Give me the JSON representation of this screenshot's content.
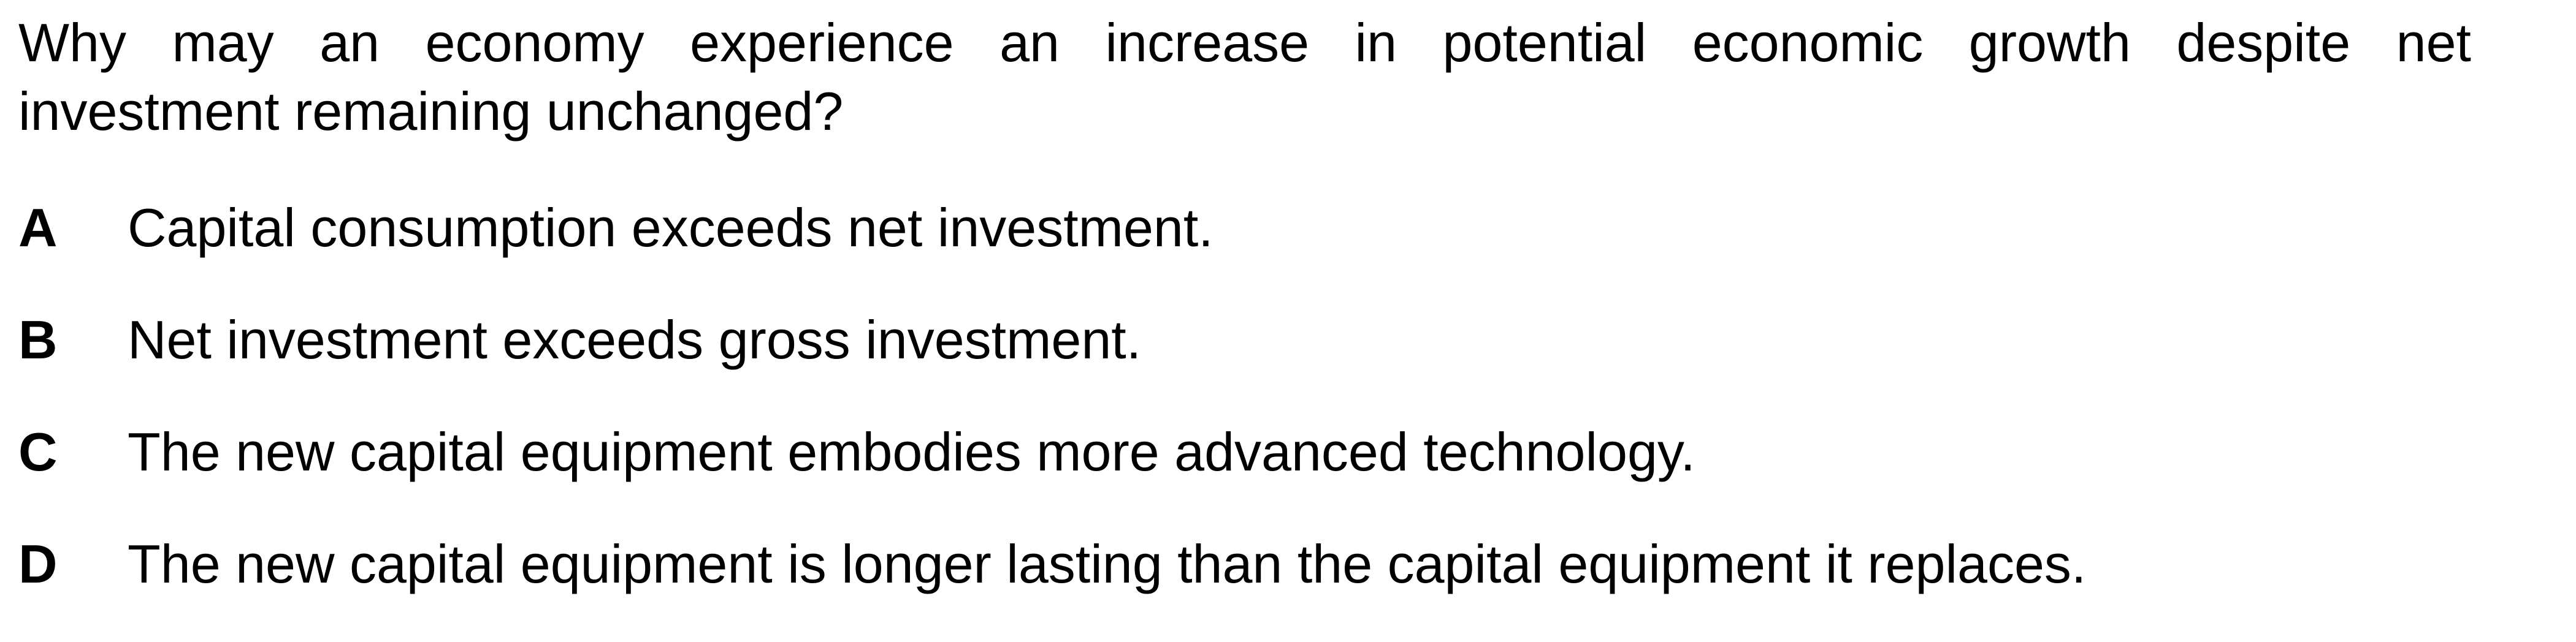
{
  "question": {
    "line1": "Why may an economy experience an increase in potential economic growth despite net",
    "line2": "investment remaining unchanged?"
  },
  "options": [
    {
      "letter": "A",
      "text": "Capital consumption exceeds net investment."
    },
    {
      "letter": "B",
      "text": "Net investment exceeds gross investment."
    },
    {
      "letter": "C",
      "text": "The new capital equipment embodies more advanced technology."
    },
    {
      "letter": "D",
      "text": "The new capital equipment is longer lasting than the capital equipment it replaces."
    }
  ]
}
